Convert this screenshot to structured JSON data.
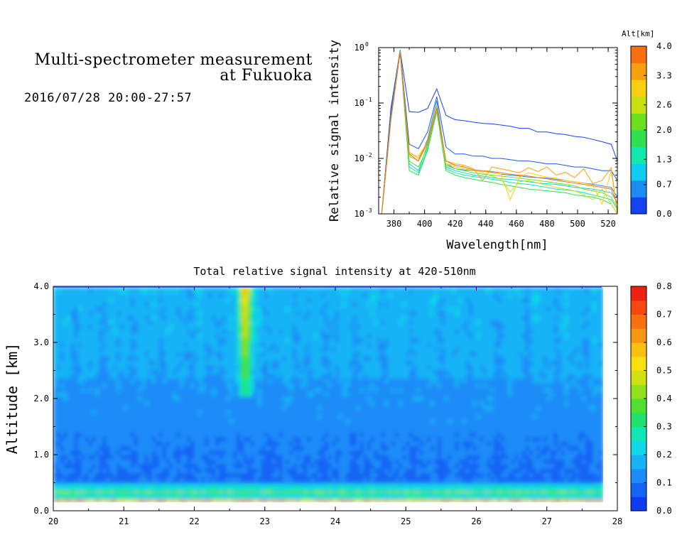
{
  "header": {
    "title_line1": "Multi-spectrometer measurement",
    "title_line2": "at Fukuoka",
    "subtitle": "2016/07/28 20:00-27:57"
  },
  "chart_data": [
    {
      "type": "line",
      "xlabel": "Wavelength[nm]",
      "ylabel": "Relative signal intensity",
      "xlim": [
        370,
        526
      ],
      "ylim": [
        0.001,
        1
      ],
      "yscale": "log",
      "x_ticks": [
        "380",
        "400",
        "420",
        "440",
        "460",
        "480",
        "500",
        "520"
      ],
      "y_ticks": [
        "10",
        "10",
        "10",
        "10"
      ],
      "y_tick_exponents": [
        "-3",
        "-2",
        "-1",
        "0"
      ],
      "colorbar_label": "Alt[km]",
      "colorbar_ticks": [
        "0.0",
        "0.7",
        "1.3",
        "2.0",
        "2.6",
        "3.3",
        "4.0"
      ],
      "colorbar_colors": [
        "#1442f2",
        "#1c8cf4",
        "#10ccf0",
        "#10e8b0",
        "#30e050",
        "#6ae020",
        "#c8e010",
        "#f8d010",
        "#f8a010",
        "#f87010"
      ],
      "x": [
        372,
        378,
        384,
        390,
        396,
        402,
        408,
        414,
        420,
        426,
        432,
        438,
        444,
        450,
        456,
        462,
        468,
        474,
        480,
        486,
        492,
        498,
        504,
        510,
        516,
        522,
        526
      ],
      "series": [
        {
          "color": "#1442f2",
          "values": [
            0.001,
            0.08,
            0.9,
            0.07,
            0.068,
            0.08,
            0.18,
            0.06,
            0.05,
            0.048,
            0.045,
            0.043,
            0.042,
            0.04,
            0.038,
            0.035,
            0.035,
            0.03,
            0.03,
            0.028,
            0.027,
            0.025,
            0.024,
            0.022,
            0.02,
            0.018,
            0.009
          ]
        },
        {
          "color": "#1c5af4",
          "values": [
            0.001,
            0.07,
            0.9,
            0.018,
            0.015,
            0.03,
            0.13,
            0.016,
            0.012,
            0.012,
            0.011,
            0.011,
            0.01,
            0.01,
            0.0095,
            0.009,
            0.009,
            0.0085,
            0.008,
            0.008,
            0.0075,
            0.007,
            0.007,
            0.0065,
            0.006,
            0.006,
            0.004
          ]
        },
        {
          "color": "#1c8cf4",
          "values": [
            0.001,
            0.06,
            0.88,
            0.011,
            0.009,
            0.022,
            0.11,
            0.008,
            0.0065,
            0.0062,
            0.006,
            0.0058,
            0.0056,
            0.0052,
            0.005,
            0.0048,
            0.0046,
            0.0045,
            0.0044,
            0.0042,
            0.004,
            0.0038,
            0.0036,
            0.0034,
            0.0032,
            0.003,
            0.002
          ]
        },
        {
          "color": "#10ccf0",
          "values": [
            0.001,
            0.05,
            0.86,
            0.008,
            0.006,
            0.018,
            0.09,
            0.007,
            0.006,
            0.0055,
            0.005,
            0.0048,
            0.0045,
            0.0043,
            0.0042,
            0.004,
            0.0038,
            0.0036,
            0.0035,
            0.0034,
            0.0032,
            0.003,
            0.0029,
            0.0028,
            0.0026,
            0.0024,
            0.0016
          ]
        },
        {
          "color": "#10e8b0",
          "values": [
            0.001,
            0.05,
            0.85,
            0.007,
            0.0055,
            0.015,
            0.08,
            0.0065,
            0.0055,
            0.005,
            0.0047,
            0.0045,
            0.0042,
            0.004,
            0.0037,
            0.0035,
            0.0034,
            0.0032,
            0.003,
            0.0028,
            0.0027,
            0.0026,
            0.0024,
            0.0022,
            0.002,
            0.0018,
            0.0012
          ]
        },
        {
          "color": "#30e050",
          "values": [
            0.001,
            0.05,
            0.84,
            0.006,
            0.005,
            0.014,
            0.07,
            0.006,
            0.005,
            0.0045,
            0.0042,
            0.0039,
            0.0037,
            0.0034,
            0.0032,
            0.003,
            0.0028,
            0.0027,
            0.0026,
            0.0025,
            0.0024,
            0.0022,
            0.0021,
            0.002,
            0.0018,
            0.0015,
            0.001
          ]
        },
        {
          "color": "#6ae020",
          "values": [
            0.001,
            0.05,
            0.84,
            0.009,
            0.007,
            0.016,
            0.08,
            0.0075,
            0.0065,
            0.006,
            0.0055,
            0.0052,
            0.005,
            0.0048,
            0.0046,
            0.0044,
            0.0042,
            0.004,
            0.0038,
            0.0036,
            0.0034,
            0.0032,
            0.0028,
            0.0026,
            0.0024,
            0.002,
            0.0013
          ]
        },
        {
          "color": "#c8e010",
          "values": [
            0.001,
            0.05,
            0.83,
            0.011,
            0.009,
            0.02,
            0.09,
            0.008,
            0.0075,
            0.007,
            0.0062,
            0.0055,
            0.0048,
            0.0042,
            0.0025,
            0.0038,
            0.004,
            0.0036,
            0.0033,
            0.003,
            0.0028,
            0.0026,
            0.0022,
            0.0018,
            0.0028,
            0.0015,
            0.001
          ]
        },
        {
          "color": "#f8d010",
          "values": [
            0.001,
            0.05,
            0.83,
            0.012,
            0.011,
            0.02,
            0.085,
            0.008,
            0.007,
            0.0065,
            0.006,
            0.0058,
            0.0055,
            0.0052,
            0.0018,
            0.0045,
            0.0055,
            0.005,
            0.0046,
            0.0044,
            0.004,
            0.0038,
            0.0036,
            0.0033,
            0.0015,
            0.006,
            0.001
          ]
        },
        {
          "color": "#f8a010",
          "values": [
            0.001,
            0.05,
            0.82,
            0.013,
            0.01,
            0.02,
            0.085,
            0.009,
            0.008,
            0.0075,
            0.0065,
            0.004,
            0.007,
            0.0065,
            0.006,
            0.0055,
            0.0068,
            0.0058,
            0.007,
            0.005,
            0.0056,
            0.0045,
            0.0065,
            0.0035,
            0.004,
            0.0068,
            0.001
          ]
        },
        {
          "color": "#f87010",
          "values": [
            0.001,
            0.05,
            0.82,
            0.012,
            0.009,
            0.019,
            0.08,
            0.009,
            0.0075,
            0.007,
            0.0062,
            0.006,
            0.0058,
            0.0055,
            0.0052,
            0.005,
            0.0048,
            0.0045,
            0.0043,
            0.004,
            0.0038,
            0.0036,
            0.0034,
            0.0032,
            0.003,
            0.0028,
            0.0015
          ]
        }
      ]
    },
    {
      "type": "heatmap",
      "title": "Total relative signal intensity at 420-510nm",
      "ylabel": "Altitude [km]",
      "xlim": [
        20,
        28
      ],
      "ylim": [
        0,
        4
      ],
      "x_ticks": [
        "20",
        "21",
        "22",
        "23",
        "24",
        "25",
        "26",
        "27",
        "28"
      ],
      "y_ticks": [
        "0.0",
        "1.0",
        "2.0",
        "3.0",
        "4.0"
      ],
      "data_end_x": 27.78,
      "colorbar_ticks": [
        "0.0",
        "0.1",
        "0.2",
        "0.3",
        "0.4",
        "0.5",
        "0.6",
        "0.7",
        "0.8"
      ],
      "colorbar_colors": [
        "#0a3cf0",
        "#1664f4",
        "#1c8cf8",
        "#16b4f6",
        "#10d8e8",
        "#10e8b4",
        "#20e070",
        "#50e030",
        "#90e020",
        "#d0e010",
        "#f8e010",
        "#f8c010",
        "#f89810",
        "#f87010",
        "#f84810",
        "#f02010"
      ],
      "vmin": 0,
      "vmax": 0.8
    }
  ]
}
